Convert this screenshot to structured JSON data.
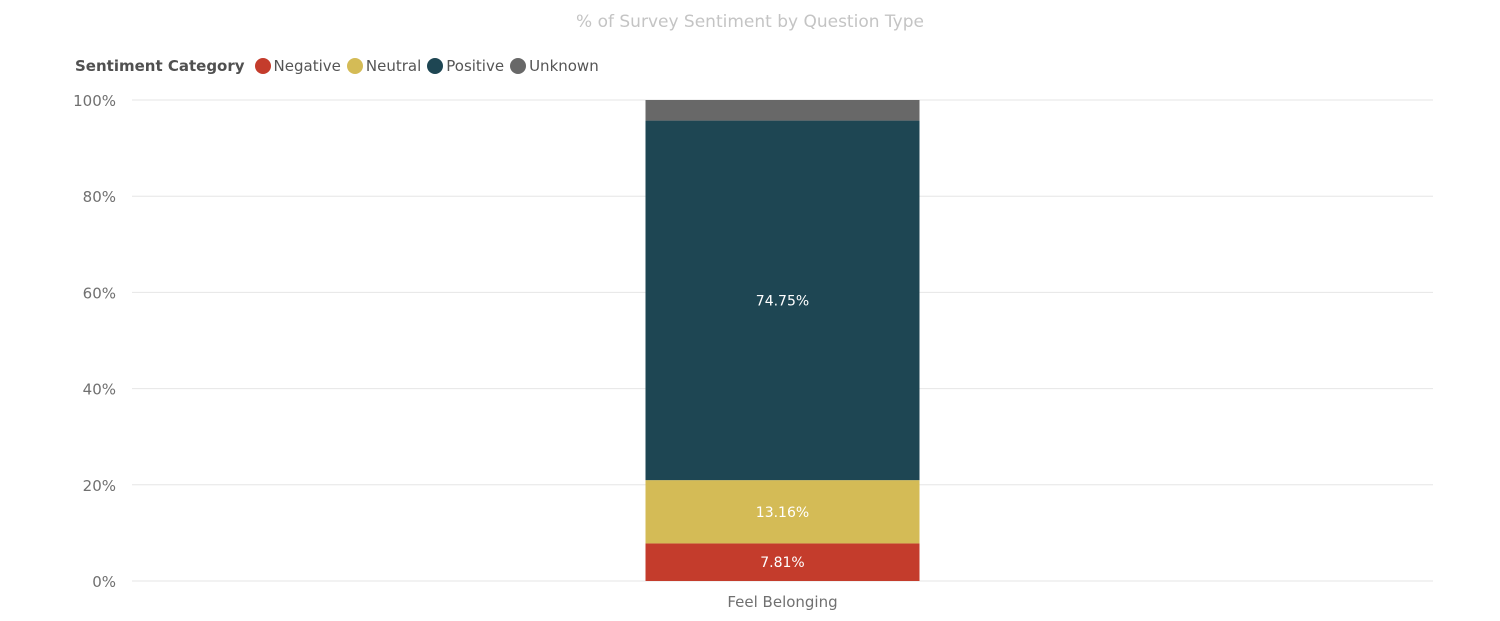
{
  "title": "% of Survey Sentiment by Question Type",
  "legend": {
    "title": "Sentiment Category",
    "items": [
      {
        "label": "Negative",
        "color": "#c43c2c"
      },
      {
        "label": "Neutral",
        "color": "#d4bb56"
      },
      {
        "label": "Positive",
        "color": "#1e4653"
      },
      {
        "label": "Unknown",
        "color": "#686868"
      }
    ]
  },
  "chart_data": {
    "type": "bar",
    "stacked": true,
    "categories": [
      "Feel Belonging"
    ],
    "series": [
      {
        "name": "Negative",
        "values": [
          7.81
        ],
        "color": "#c43c2c",
        "label": "7.81%"
      },
      {
        "name": "Neutral",
        "values": [
          13.16
        ],
        "color": "#d4bb56",
        "label": "13.16%"
      },
      {
        "name": "Positive",
        "values": [
          74.75
        ],
        "color": "#1e4653",
        "label": "74.75%"
      },
      {
        "name": "Unknown",
        "values": [
          4.28
        ],
        "color": "#686868",
        "label": ""
      }
    ],
    "y_ticks": [
      "0%",
      "20%",
      "40%",
      "60%",
      "80%",
      "100%"
    ],
    "ylim": [
      0,
      100
    ],
    "grid": true,
    "legend_position": "top-left"
  }
}
